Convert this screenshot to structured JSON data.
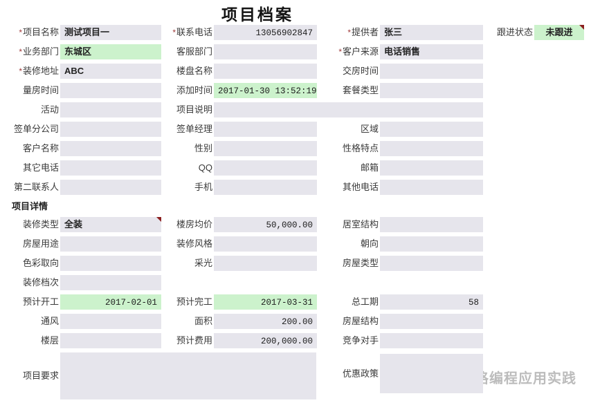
{
  "title": "项目档案",
  "required_mark": "*",
  "colors": {
    "field_gray": "#e6e5ec",
    "field_green": "#ccf2cc",
    "required_red": "#a03a3a",
    "comment_marker": "#8b1f1f",
    "watermark_gray": "#bcbcbc"
  },
  "watermark": {
    "text": "表格编程应用实践",
    "icon": "wechat-icon"
  },
  "rows": [
    {
      "cells": [
        {
          "col": 0,
          "label": "项目名称",
          "required": true,
          "value": "测试项目一",
          "bg": "gray",
          "align": "left"
        },
        {
          "col": 1,
          "label": "联系电话",
          "required": true,
          "value": "13056902847",
          "bg": "gray",
          "align": "right"
        },
        {
          "col": 2,
          "label": "提供者",
          "required": true,
          "value": "张三",
          "bg": "gray",
          "align": "left"
        },
        {
          "col": 3,
          "label": "跟进状态",
          "value": "未跟进",
          "bg": "green",
          "align": "center",
          "comment": true
        }
      ]
    },
    {
      "cells": [
        {
          "col": 0,
          "label": "业务部门",
          "required": true,
          "value": "东城区",
          "bg": "green",
          "align": "left"
        },
        {
          "col": 1,
          "label": "客服部门",
          "value": "",
          "bg": "gray",
          "align": "left"
        },
        {
          "col": 2,
          "label": "客户来源",
          "required": true,
          "value": "电话销售",
          "bg": "gray",
          "align": "left"
        }
      ]
    },
    {
      "cells": [
        {
          "col": 0,
          "label": "装修地址",
          "required": true,
          "value": "ABC",
          "bg": "gray",
          "align": "left"
        },
        {
          "col": 1,
          "label": "楼盘名称",
          "value": "",
          "bg": "gray",
          "align": "left"
        },
        {
          "col": 2,
          "label": "交房时间",
          "value": "",
          "bg": "gray",
          "align": "left"
        }
      ]
    },
    {
      "cells": [
        {
          "col": 0,
          "label": "量房时间",
          "value": "",
          "bg": "gray",
          "align": "left"
        },
        {
          "col": 1,
          "label": "添加时间",
          "value": "2017-01-30 13:52:19",
          "bg": "green",
          "align": "right"
        },
        {
          "col": 2,
          "label": "套餐类型",
          "value": "",
          "bg": "gray",
          "align": "left"
        }
      ]
    },
    {
      "cells": [
        {
          "col": 0,
          "label": "活动",
          "value": "",
          "bg": "gray",
          "align": "left"
        },
        {
          "col": 1,
          "label": "项目说明",
          "value": "",
          "bg": "gray",
          "align": "left",
          "wide": true
        }
      ]
    },
    {
      "cells": [
        {
          "col": 0,
          "label": "签单分公司",
          "value": "",
          "bg": "gray",
          "align": "left"
        },
        {
          "col": 1,
          "label": "签单经理",
          "value": "",
          "bg": "gray",
          "align": "left"
        },
        {
          "col": 2,
          "label": "区域",
          "value": "",
          "bg": "gray",
          "align": "left"
        }
      ]
    },
    {
      "cells": [
        {
          "col": 0,
          "label": "客户名称",
          "value": "",
          "bg": "gray",
          "align": "left"
        },
        {
          "col": 1,
          "label": "性别",
          "value": "",
          "bg": "gray",
          "align": "left"
        },
        {
          "col": 2,
          "label": "性格特点",
          "value": "",
          "bg": "gray",
          "align": "left"
        }
      ]
    },
    {
      "cells": [
        {
          "col": 0,
          "label": "其它电话",
          "value": "",
          "bg": "gray",
          "align": "left"
        },
        {
          "col": 1,
          "label": "QQ",
          "value": "",
          "bg": "gray",
          "align": "left"
        },
        {
          "col": 2,
          "label": "邮箱",
          "value": "",
          "bg": "gray",
          "align": "left"
        }
      ]
    },
    {
      "cells": [
        {
          "col": 0,
          "label": "第二联系人",
          "value": "",
          "bg": "gray",
          "align": "left"
        },
        {
          "col": 1,
          "label": "手机",
          "value": "",
          "bg": "gray",
          "align": "left"
        },
        {
          "col": 2,
          "label": "其他电话",
          "value": "",
          "bg": "gray",
          "align": "left"
        }
      ]
    },
    {
      "type": "section",
      "label": "项目详情"
    },
    {
      "cells": [
        {
          "col": 0,
          "label": "装修类型",
          "value": "全装",
          "bg": "gray",
          "align": "left",
          "comment": true
        },
        {
          "col": 1,
          "label": "楼房均价",
          "value": "50,000.00",
          "bg": "gray",
          "align": "right"
        },
        {
          "col": 2,
          "label": "居室结构",
          "value": "",
          "bg": "gray",
          "align": "left"
        }
      ]
    },
    {
      "cells": [
        {
          "col": 0,
          "label": "房屋用途",
          "value": "",
          "bg": "gray",
          "align": "left"
        },
        {
          "col": 1,
          "label": "装修风格",
          "value": "",
          "bg": "gray",
          "align": "left"
        },
        {
          "col": 2,
          "label": "朝向",
          "value": "",
          "bg": "gray",
          "align": "left"
        }
      ]
    },
    {
      "cells": [
        {
          "col": 0,
          "label": "色彩取向",
          "value": "",
          "bg": "gray",
          "align": "left"
        },
        {
          "col": 1,
          "label": "采光",
          "value": "",
          "bg": "gray",
          "align": "left"
        },
        {
          "col": 2,
          "label": "房屋类型",
          "value": "",
          "bg": "gray",
          "align": "left"
        }
      ]
    },
    {
      "cells": [
        {
          "col": 0,
          "label": "装修档次",
          "value": "",
          "bg": "gray",
          "align": "left"
        }
      ]
    },
    {
      "cells": [
        {
          "col": 0,
          "label": "预计开工",
          "value": "2017-02-01",
          "bg": "green",
          "align": "right"
        },
        {
          "col": 1,
          "label": "预计完工",
          "value": "2017-03-31",
          "bg": "green",
          "align": "right"
        },
        {
          "col": 2,
          "label": "总工期",
          "value": "58",
          "bg": "gray",
          "align": "right"
        }
      ]
    },
    {
      "cells": [
        {
          "col": 0,
          "label": "通风",
          "value": "",
          "bg": "gray",
          "align": "left"
        },
        {
          "col": 1,
          "label": "面积",
          "value": "200.00",
          "bg": "gray",
          "align": "right"
        },
        {
          "col": 2,
          "label": "房屋结构",
          "value": "",
          "bg": "gray",
          "align": "left"
        }
      ]
    },
    {
      "cells": [
        {
          "col": 0,
          "label": "楼层",
          "value": "",
          "bg": "gray",
          "align": "left"
        },
        {
          "col": 1,
          "label": "预计费用",
          "value": "200,000.00",
          "bg": "gray",
          "align": "right"
        },
        {
          "col": 2,
          "label": "竞争对手",
          "value": "",
          "bg": "gray",
          "align": "left"
        }
      ]
    },
    {
      "cells": [
        {
          "col": 0,
          "label": "项目要求",
          "value": "",
          "bg": "gray",
          "align": "left",
          "tall": true
        },
        {
          "col": 2,
          "label": "优惠政策",
          "value": "",
          "bg": "gray",
          "align": "left",
          "tall": true
        }
      ]
    }
  ]
}
